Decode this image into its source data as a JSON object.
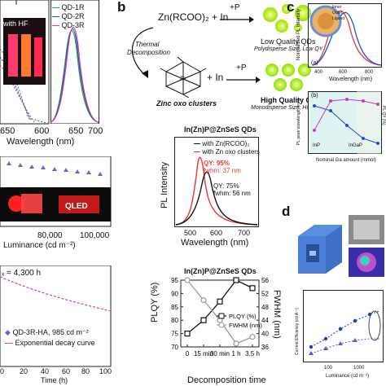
{
  "panel_labels": {
    "b": "b",
    "c": "c",
    "d": "d"
  },
  "panel_a": {
    "legend": [
      "QD-1R",
      "QD-2R",
      "QD-3R"
    ],
    "legend_colors": [
      "#2f9e44",
      "#1e4fd8",
      "#d63aa8"
    ],
    "inset_label": "with HF",
    "x_ticks": [
      "650",
      "600",
      "650",
      "700"
    ],
    "x_label": "Wavelength (nm)",
    "luminance_x_ticks": [
      "80,000",
      "100,000"
    ],
    "luminance_x_label": "Luminance (cd m⁻²)",
    "qled_label": "QLED",
    "t_label": "ₓ = 4,300 h",
    "decay_legend": [
      "QD-3R-HA, 985 cd m⁻²",
      "Exponential decay curve"
    ],
    "time_ticks": [
      "0",
      "20",
      "40",
      "60",
      "80",
      "100"
    ],
    "time_label": "Time (h)"
  },
  "panel_b_scheme": {
    "reaction1": "Zn(RCOO)₂ + In",
    "plus_p": "+P",
    "thermal": "Thermal",
    "decomposition": "Decomposition",
    "low_quality": "Low Quality QDs",
    "low_quality_sub": "Polydisperse Size, Low QY",
    "reaction2": "+ In",
    "cluster_label": "Zinc oxo clusters",
    "high_quality": "High Quality QDs",
    "high_quality_sub": "Monodisperse Size, High QY"
  },
  "pl_chart": {
    "title": "In(Zn)P@ZnSeS QDs",
    "legend": [
      "with Zn(RCOO)₂",
      "with Zn oxo clusters"
    ],
    "qy_red": "QY: 95%",
    "fwhm_red": "fwhm: 37 nm",
    "qy_black": "QY: 75%",
    "fwhm_black": "fwhm: 56 nm",
    "x_label": "Wavelength (nm)",
    "y_label": "PL Intensity",
    "x_ticks": [
      "500",
      "600",
      "700"
    ]
  },
  "chart_data": {
    "type": "line",
    "title": "In(Zn)P@ZnSeS QDs",
    "categories": [
      "0",
      "15 min",
      "30 min",
      "1 h",
      "3.5 h"
    ],
    "xlabel": "Decomposition time",
    "ylabel": "PLQY (%)",
    "y2label": "FWHM (nm)",
    "ylim": [
      70,
      95
    ],
    "y2lim": [
      36,
      56
    ],
    "y_ticks": [
      "70",
      "75",
      "80",
      "85",
      "90",
      "95"
    ],
    "y2_ticks": [
      "36",
      "40",
      "44",
      "48",
      "52",
      "56"
    ],
    "series": [
      {
        "name": "PLQY (%)",
        "values": [
          75,
          80,
          87,
          95,
          92
        ],
        "color": "#111111",
        "axis": "left"
      },
      {
        "name": "FWHM (nm)",
        "values": [
          56,
          50,
          44,
          37,
          39
        ],
        "color": "#9a9a9a",
        "axis": "right"
      }
    ]
  },
  "panel_c": {
    "y_label": "Normalized PL Intensity",
    "x_label": "Wavelength (nm)",
    "x_ticks": [
      "400",
      "600",
      "800"
    ],
    "sub_a": "(a)",
    "sub_b": "(b)",
    "lower_y_label": "PL peak wavelength (nm)",
    "lower_y2_label": "PL QY (%)",
    "lower_x_label": "Nominal Ga amount (mmol)",
    "lower_labels": [
      "InP",
      "InGaP"
    ],
    "inset_labels": [
      "Inner",
      "Outer",
      "Ligand"
    ]
  },
  "panel_d": {
    "y_label": "Current Efficiency (cd A⁻¹)",
    "x_label": "Luminance (cd m⁻²)",
    "x_ticks": [
      "100",
      "1000"
    ]
  }
}
